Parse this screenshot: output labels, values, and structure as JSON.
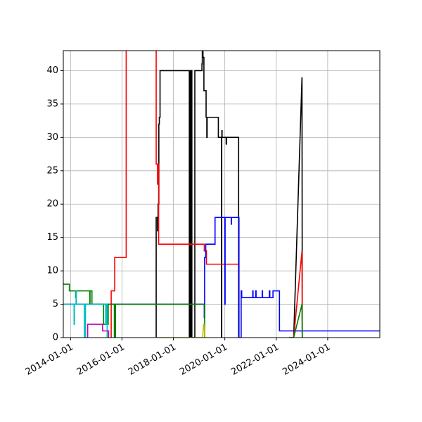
{
  "chart_data": {
    "type": "line",
    "title": "",
    "xlabel": "",
    "ylabel": "",
    "grid": true,
    "legend": "none",
    "xlim": [
      "2013-09-20",
      "2026-01-10"
    ],
    "ylim": [
      0,
      43
    ],
    "x_ticks": [
      "2014-01-01",
      "2016-01-01",
      "2018-01-01",
      "2020-01-01",
      "2022-01-01",
      "2024-01-01"
    ],
    "y_ticks": [
      0,
      5,
      10,
      15,
      20,
      25,
      30,
      35,
      40
    ],
    "series": [
      {
        "color": "#000000",
        "points": [
          [
            "2017-05-01",
            0
          ],
          [
            "2017-05-01",
            18
          ],
          [
            "2017-05-20",
            18
          ],
          [
            "2017-05-20",
            16
          ],
          [
            "2017-05-28",
            16
          ],
          [
            "2017-05-28",
            20
          ],
          [
            "2017-06-08",
            20
          ],
          [
            "2017-06-08",
            32
          ],
          [
            "2017-06-15",
            32
          ],
          [
            "2017-06-15",
            33
          ],
          [
            "2017-06-25",
            33
          ],
          [
            "2017-06-25",
            40
          ],
          [
            "2018-08-15",
            40
          ],
          [
            "2018-08-15",
            0
          ],
          [
            "2018-08-20",
            0
          ],
          [
            "2018-08-20",
            40
          ],
          [
            "2018-08-25",
            40
          ],
          [
            "2018-08-25",
            0
          ],
          [
            "2018-08-30",
            0
          ],
          [
            "2018-08-30",
            40
          ],
          [
            "2018-09-05",
            40
          ],
          [
            "2018-09-05",
            0
          ],
          [
            "2018-09-10",
            0
          ],
          [
            "2018-09-10",
            40
          ],
          [
            "2018-09-20",
            40
          ],
          [
            "2018-09-20",
            0
          ],
          [
            "2018-11-01",
            0
          ],
          [
            "2018-11-01",
            40
          ],
          [
            "2019-02-10",
            40
          ],
          [
            "2019-02-10",
            41
          ],
          [
            "2019-02-15",
            41
          ],
          [
            "2019-02-15",
            43
          ],
          [
            "2019-02-25",
            43
          ],
          [
            "2019-02-25",
            42
          ],
          [
            "2019-03-10",
            42
          ],
          [
            "2019-03-10",
            37
          ],
          [
            "2019-04-10",
            37
          ],
          [
            "2019-04-10",
            33
          ],
          [
            "2019-04-20",
            33
          ],
          [
            "2019-04-20",
            30
          ],
          [
            "2019-04-25",
            30
          ],
          [
            "2019-04-25",
            33
          ],
          [
            "2019-10-01",
            33
          ],
          [
            "2019-10-01",
            30
          ],
          [
            "2019-11-20",
            30
          ],
          [
            "2019-11-20",
            31
          ],
          [
            "2019-11-23",
            31
          ],
          [
            "2019-11-23",
            30
          ],
          [
            "2020-01-20",
            30
          ],
          [
            "2020-01-20",
            29
          ],
          [
            "2020-01-25",
            29
          ],
          [
            "2020-01-25",
            30
          ],
          [
            "2020-07-15",
            30
          ],
          [
            "2020-07-15",
            0
          ]
        ]
      },
      {
        "color": "#000000",
        "points": [
          [
            "2019-11-15",
            0
          ],
          [
            "2019-11-15",
            30
          ],
          [
            "2019-11-18",
            30
          ],
          [
            "2019-11-18",
            0
          ]
        ]
      },
      {
        "color": "#000000",
        "points": [
          [
            "2022-07-01",
            0
          ],
          [
            "2022-09-05",
            0
          ],
          [
            "2023-01-01",
            39
          ],
          [
            "2023-01-05",
            0
          ]
        ]
      },
      {
        "color": "#ff0000",
        "points": [
          [
            "2015-08-01",
            0
          ],
          [
            "2015-08-01",
            7
          ],
          [
            "2015-09-20",
            7
          ],
          [
            "2015-09-20",
            12
          ],
          [
            "2016-03-01",
            12
          ],
          [
            "2016-03-01",
            45
          ],
          [
            "2017-05-01",
            45
          ],
          [
            "2017-05-01",
            26
          ],
          [
            "2017-05-20",
            26
          ],
          [
            "2017-05-20",
            23
          ],
          [
            "2017-05-22",
            23
          ],
          [
            "2017-05-22",
            26
          ],
          [
            "2017-06-05",
            26
          ],
          [
            "2017-06-05",
            14
          ],
          [
            "2019-03-15",
            14
          ],
          [
            "2019-03-15",
            13
          ],
          [
            "2019-04-15",
            13
          ],
          [
            "2019-04-15",
            11
          ],
          [
            "2020-07-15",
            11
          ]
        ]
      },
      {
        "color": "#ff0000",
        "points": [
          [
            "2022-09-05",
            0
          ],
          [
            "2023-01-01",
            13
          ],
          [
            "2023-01-05",
            0
          ]
        ]
      },
      {
        "color": "#0000ff",
        "points": [
          [
            "2013-09-20",
            5
          ],
          [
            "2019-03-15",
            5
          ],
          [
            "2019-03-15",
            3
          ],
          [
            "2019-03-20",
            3
          ],
          [
            "2019-03-20",
            12
          ],
          [
            "2019-04-05",
            12
          ],
          [
            "2019-04-05",
            14
          ],
          [
            "2019-08-15",
            14
          ],
          [
            "2019-08-15",
            18
          ],
          [
            "2020-01-01",
            18
          ],
          [
            "2020-01-01",
            5
          ],
          [
            "2020-01-05",
            5
          ],
          [
            "2020-01-05",
            18
          ],
          [
            "2020-04-01",
            18
          ],
          [
            "2020-04-01",
            17
          ],
          [
            "2020-04-05",
            17
          ],
          [
            "2020-04-05",
            18
          ],
          [
            "2020-07-20",
            18
          ],
          [
            "2020-07-20",
            0
          ],
          [
            "2020-08-20",
            0
          ],
          [
            "2020-08-20",
            7
          ],
          [
            "2020-08-28",
            7
          ],
          [
            "2020-08-28",
            6
          ],
          [
            "2021-02-01",
            6
          ],
          [
            "2021-02-01",
            7
          ],
          [
            "2021-02-05",
            7
          ],
          [
            "2021-02-05",
            6
          ],
          [
            "2021-03-15",
            6
          ],
          [
            "2021-03-15",
            7
          ],
          [
            "2021-03-20",
            7
          ],
          [
            "2021-03-20",
            6
          ],
          [
            "2021-06-15",
            6
          ],
          [
            "2021-06-15",
            7
          ],
          [
            "2021-06-20",
            7
          ],
          [
            "2021-06-20",
            6
          ],
          [
            "2021-09-25",
            6
          ],
          [
            "2021-09-25",
            7
          ],
          [
            "2021-10-01",
            7
          ],
          [
            "2021-10-01",
            6
          ],
          [
            "2021-11-15",
            6
          ],
          [
            "2021-11-15",
            7
          ],
          [
            "2022-02-15",
            7
          ],
          [
            "2022-02-15",
            1
          ],
          [
            "2026-01-10",
            1
          ]
        ]
      },
      {
        "color": "#008000",
        "points": [
          [
            "2013-09-20",
            8
          ],
          [
            "2013-12-15",
            8
          ],
          [
            "2013-12-15",
            7
          ],
          [
            "2014-03-15",
            7
          ],
          [
            "2014-03-15",
            6
          ],
          [
            "2014-03-20",
            6
          ],
          [
            "2014-03-20",
            7
          ],
          [
            "2014-10-01",
            7
          ],
          [
            "2014-10-01",
            5
          ],
          [
            "2014-10-05",
            5
          ],
          [
            "2014-10-05",
            7
          ],
          [
            "2014-11-01",
            7
          ],
          [
            "2014-11-01",
            5
          ],
          [
            "2015-04-15",
            5
          ],
          [
            "2015-04-15",
            2
          ],
          [
            "2015-06-20",
            2
          ],
          [
            "2015-06-20",
            5
          ],
          [
            "2015-09-15",
            5
          ],
          [
            "2015-09-15",
            0
          ],
          [
            "2015-10-01",
            0
          ],
          [
            "2015-10-01",
            5
          ],
          [
            "2019-03-20",
            5
          ],
          [
            "2019-03-20",
            0
          ]
        ]
      },
      {
        "color": "#008000",
        "points": [
          [
            "2022-09-05",
            0
          ],
          [
            "2023-01-01",
            5
          ],
          [
            "2023-01-05",
            0
          ]
        ]
      },
      {
        "color": "#00bfbf",
        "points": [
          [
            "2013-09-20",
            5
          ],
          [
            "2014-02-20",
            5
          ],
          [
            "2014-02-20",
            2
          ],
          [
            "2014-02-25",
            2
          ],
          [
            "2014-02-25",
            5
          ],
          [
            "2014-03-20",
            5
          ],
          [
            "2014-03-20",
            7
          ],
          [
            "2014-03-25",
            7
          ],
          [
            "2014-03-25",
            5
          ],
          [
            "2014-07-15",
            5
          ],
          [
            "2014-07-15",
            0
          ],
          [
            "2014-08-01",
            0
          ],
          [
            "2014-08-01",
            5
          ],
          [
            "2015-05-15",
            5
          ],
          [
            "2015-05-15",
            2
          ],
          [
            "2015-05-20",
            2
          ],
          [
            "2015-05-20",
            5
          ],
          [
            "2015-06-05",
            5
          ],
          [
            "2015-06-05",
            0
          ]
        ]
      },
      {
        "color": "#bf00bf",
        "points": [
          [
            "2014-09-01",
            0
          ],
          [
            "2014-09-01",
            2
          ],
          [
            "2015-04-01",
            2
          ],
          [
            "2015-04-01",
            1
          ],
          [
            "2015-06-25",
            1
          ],
          [
            "2015-06-25",
            0
          ]
        ]
      },
      {
        "color": "#bfbf00",
        "points": [
          [
            "2017-05-01",
            0
          ],
          [
            "2019-02-20",
            0
          ],
          [
            "2019-03-05",
            2
          ],
          [
            "2019-03-10",
            2
          ],
          [
            "2019-03-25",
            0
          ]
        ]
      }
    ]
  }
}
